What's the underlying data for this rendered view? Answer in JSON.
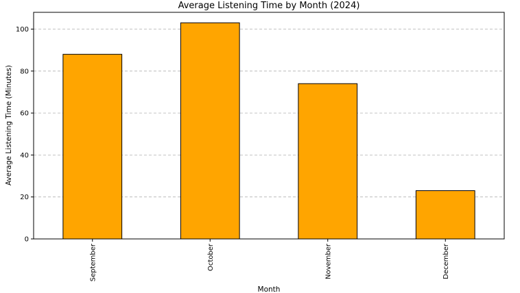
{
  "chart_data": {
    "type": "bar",
    "title": "Average Listening Time by Month (2024)",
    "xlabel": "Month",
    "ylabel": "Average Listening Time (Minutes)",
    "categories": [
      "September",
      "October",
      "November",
      "December"
    ],
    "values": [
      88,
      103,
      74,
      23
    ],
    "ylim": [
      0,
      108
    ],
    "yticks": [
      0,
      20,
      40,
      60,
      80,
      100
    ],
    "grid": "y-dashed",
    "bar_color": "#FFA500",
    "edge_color": "#000000"
  }
}
